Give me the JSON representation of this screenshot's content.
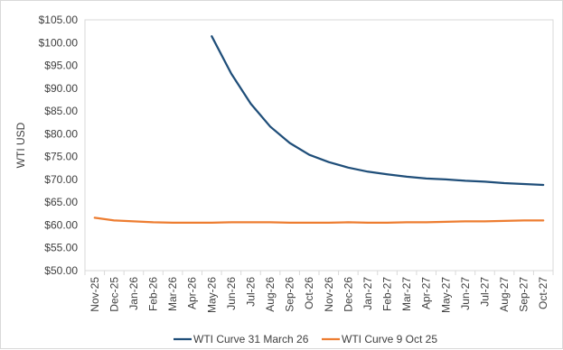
{
  "chart_data": {
    "type": "line",
    "title": "",
    "xlabel": "",
    "ylabel": "WTI USD",
    "ylim": [
      50,
      105
    ],
    "y_ticks": [
      "$50.00",
      "$55.00",
      "$60.00",
      "$65.00",
      "$70.00",
      "$75.00",
      "$80.00",
      "$85.00",
      "$90.00",
      "$95.00",
      "$100.00",
      "$105.00"
    ],
    "y_tick_values": [
      50,
      55,
      60,
      65,
      70,
      75,
      80,
      85,
      90,
      95,
      100,
      105
    ],
    "categories": [
      "Nov-25",
      "Dec-25",
      "Jan-26",
      "Feb-26",
      "Mar-26",
      "Apr-26",
      "May-26",
      "Jun-26",
      "Jul-26",
      "Aug-26",
      "Sep-26",
      "Oct-26",
      "Nov-26",
      "Dec-26",
      "Jan-27",
      "Feb-27",
      "Mar-27",
      "Apr-27",
      "May-27",
      "Jun-27",
      "Jul-27",
      "Aug-27",
      "Sep-27",
      "Oct-27"
    ],
    "grid": false,
    "legend_position": "bottom",
    "series": [
      {
        "name": "WTI Curve 31 March 26",
        "color": "#1f4e79",
        "values": [
          null,
          null,
          null,
          null,
          null,
          null,
          101.4,
          93.2,
          86.6,
          81.6,
          78.0,
          75.4,
          73.8,
          72.6,
          71.7,
          71.1,
          70.6,
          70.2,
          70.0,
          69.7,
          69.5,
          69.2,
          69.0,
          68.8
        ]
      },
      {
        "name": "WTI Curve 9 Oct 25",
        "color": "#ed7d31",
        "values": [
          61.6,
          61.0,
          60.8,
          60.6,
          60.5,
          60.5,
          60.5,
          60.6,
          60.6,
          60.6,
          60.5,
          60.5,
          60.5,
          60.6,
          60.5,
          60.5,
          60.6,
          60.6,
          60.7,
          60.8,
          60.8,
          60.9,
          61.0,
          61.0
        ]
      }
    ]
  }
}
